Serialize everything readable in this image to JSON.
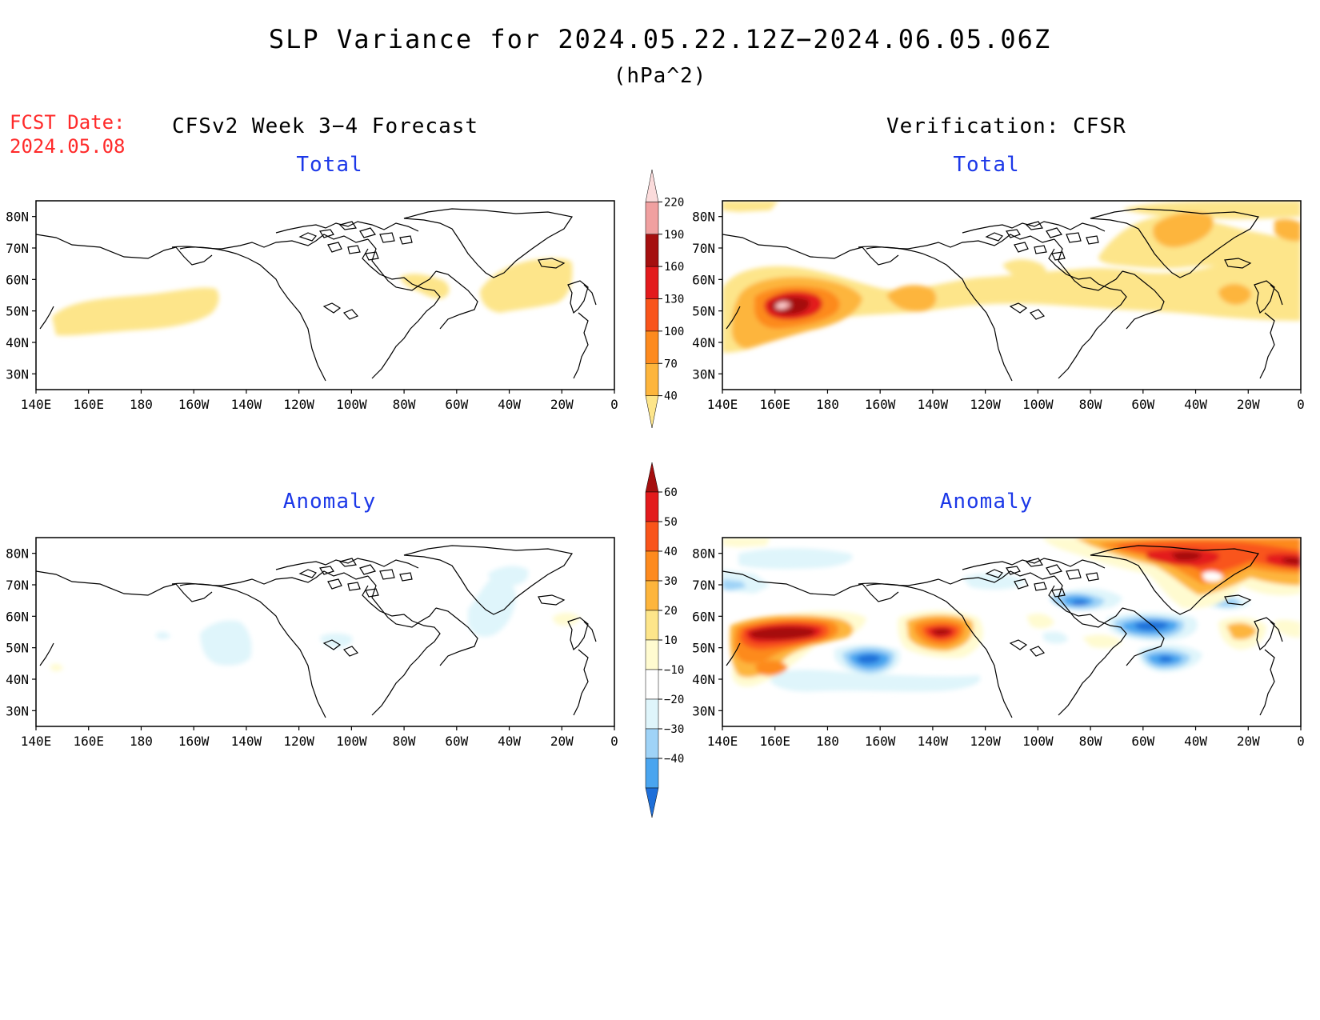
{
  "title": "SLP Variance for 2024.05.22.12Z−2024.06.05.06Z",
  "units": "(hPa^2)",
  "fcst_date_label": "FCST Date:",
  "fcst_date": "2024.05.08",
  "forecast_header": "CFSv2 Week 3−4 Forecast",
  "verification_header": "Verification: CFSR",
  "panels": {
    "fcst_total_title": "Total",
    "verif_total_title": "Total",
    "fcst_anom_title": "Anomaly",
    "verif_anom_title": "Anomaly"
  },
  "lon_labels": [
    "140E",
    "160E",
    "180",
    "160W",
    "140W",
    "120W",
    "100W",
    "80W",
    "60W",
    "40W",
    "20W",
    "0"
  ],
  "lat_labels": [
    "80N",
    "70N",
    "60N",
    "50N",
    "40N",
    "30N"
  ],
  "total_colorbar": {
    "levels": [
      "40",
      "70",
      "100",
      "130",
      "160",
      "190",
      "220"
    ],
    "colors": [
      "#fde58a",
      "#fdb53c",
      "#fd8a1e",
      "#f9541a",
      "#e31a1c",
      "#a50f0f",
      "#f0a0a0",
      "#fbdbdb"
    ]
  },
  "anomaly_colorbar": {
    "levels": [
      "60",
      "50",
      "40",
      "30",
      "20",
      "10",
      "−10",
      "−20",
      "−30",
      "−40"
    ],
    "colors": [
      "#a50f0f",
      "#e31a1c",
      "#f9541a",
      "#fd8a1e",
      "#fdb53c",
      "#fde58a",
      "#fffbd0",
      "#ffffff",
      "#dff5fb",
      "#9fd3f7",
      "#4aa5ef",
      "#1e6fd9"
    ]
  }
}
